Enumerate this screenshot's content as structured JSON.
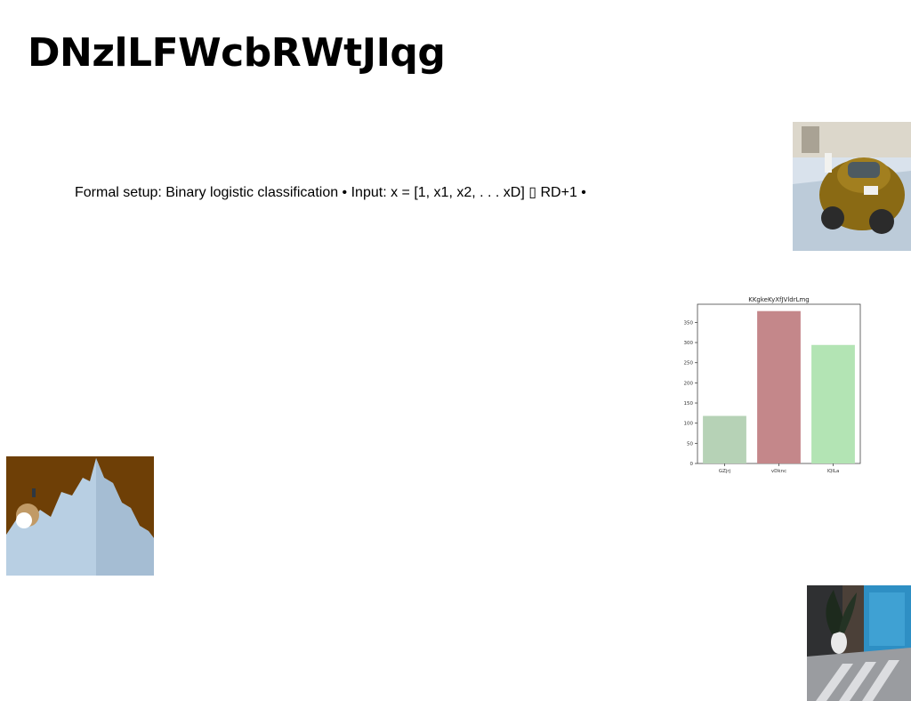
{
  "slide": {
    "title": "DNzlLFWcbRWtJIqg",
    "body_text": "Formal setup: Binary logistic classification • Input: x = [1, x1, x2, . . . xD] ▯ RD+1 •"
  },
  "images": {
    "car_photo": "yellow vintage beetle car on street",
    "mountain_photo": "stylized pale blue mountain peak with brown sky",
    "doorway_photo": "plant by blue door with striped shadows"
  },
  "chart_data": {
    "type": "bar",
    "title": "KKgkeKyXfJVldrLmg",
    "categories": [
      "GZjrj",
      "vDknc",
      "lQlLa"
    ],
    "values": [
      118,
      378,
      294
    ],
    "colors": [
      "#b6d2b6",
      "#c4878a",
      "#b3e4b4"
    ],
    "ylim": [
      0,
      395
    ],
    "yticks": [
      0,
      50,
      100,
      150,
      200,
      250,
      300,
      350
    ],
    "xlabel": "",
    "ylabel": "",
    "grid": false
  }
}
